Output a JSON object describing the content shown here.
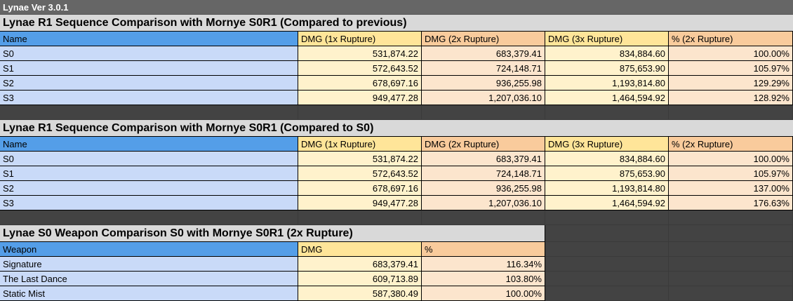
{
  "app_title": "Lynae Ver 3.0.1",
  "colors": {
    "header_blue": "#549ee8",
    "header_yellow": "#ffe599",
    "header_orange": "#f9cb9c",
    "cell_blue": "#c9daf8",
    "cell_yellow": "#fff2cc",
    "cell_orange": "#fce5cd",
    "dark": "#434343"
  },
  "sections": [
    {
      "title": "Lynae R1 Sequence Comparison with Mornye S0R1 (Compared to previous)",
      "headers": [
        "Name",
        "DMG (1x Rupture)",
        "DMG (2x Rupture)",
        "DMG (3x Rupture)",
        "% (2x Rupture)"
      ],
      "rows": [
        [
          "S0",
          "531,874.22",
          "683,379.41",
          "834,884.60",
          "100.00%"
        ],
        [
          "S1",
          "572,643.52",
          "724,148.71",
          "875,653.90",
          "105.97%"
        ],
        [
          "S2",
          "678,697.16",
          "936,255.98",
          "1,193,814.80",
          "129.29%"
        ],
        [
          "S3",
          "949,477.28",
          "1,207,036.10",
          "1,464,594.92",
          "128.92%"
        ]
      ]
    },
    {
      "title": "Lynae R1 Sequence Comparison with Mornye S0R1 (Compared to S0)",
      "headers": [
        "Name",
        "DMG (1x Rupture)",
        "DMG (2x Rupture)",
        "DMG (3x Rupture)",
        "% (2x Rupture)"
      ],
      "rows": [
        [
          "S0",
          "531,874.22",
          "683,379.41",
          "834,884.60",
          "100.00%"
        ],
        [
          "S1",
          "572,643.52",
          "724,148.71",
          "875,653.90",
          "105.97%"
        ],
        [
          "S2",
          "678,697.16",
          "936,255.98",
          "1,193,814.80",
          "137.00%"
        ],
        [
          "S3",
          "949,477.28",
          "1,207,036.10",
          "1,464,594.92",
          "176.63%"
        ]
      ]
    },
    {
      "title": "Lynae S0 Weapon Comparison S0 with Mornye S0R1 (2x Rupture)",
      "headers": [
        "Weapon",
        "DMG",
        "%"
      ],
      "rows": [
        [
          "Signature",
          "683,379.41",
          "116.34%"
        ],
        [
          "The Last Dance",
          "609,713.89",
          "103.80%"
        ],
        [
          "Static Mist",
          "587,380.49",
          "100.00%"
        ]
      ]
    }
  ]
}
